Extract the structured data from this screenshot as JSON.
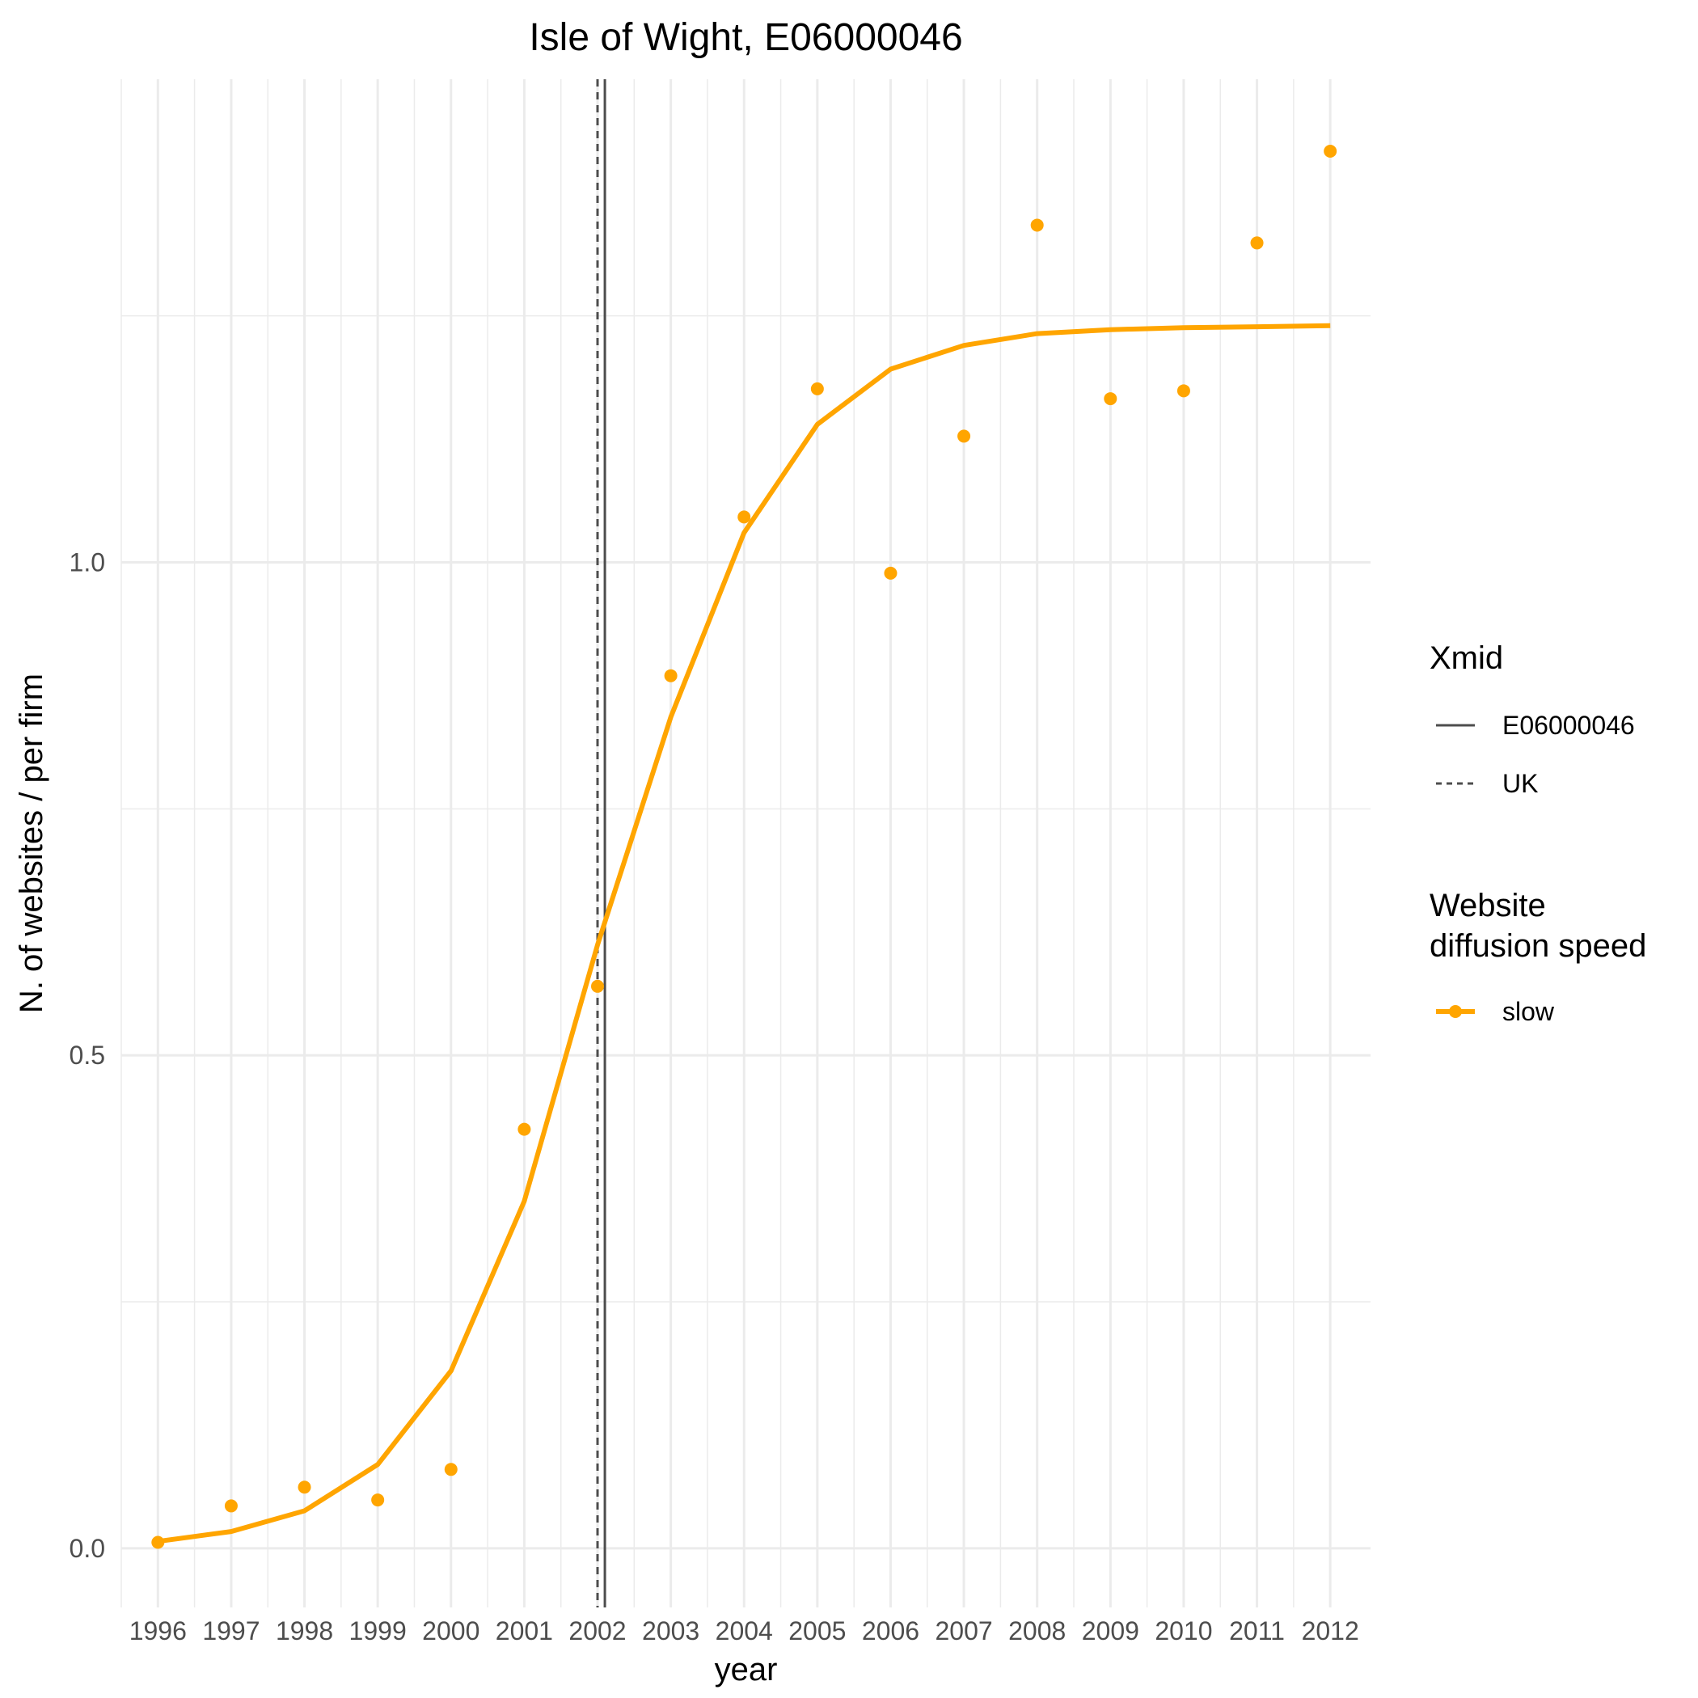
{
  "chart_data": {
    "type": "line",
    "title": "Isle of Wight, E06000046",
    "xlabel": "year",
    "ylabel": "N. of websites / per firm",
    "x": [
      1996,
      1997,
      1998,
      1999,
      2000,
      2001,
      2002,
      2003,
      2004,
      2005,
      2006,
      2007,
      2008,
      2009,
      2010,
      2011,
      2012
    ],
    "x_tick_labels": [
      "1996",
      "1997",
      "1998",
      "1999",
      "2000",
      "2001",
      "2002",
      "2003",
      "2004",
      "2005",
      "2006",
      "2007",
      "2008",
      "2009",
      "2010",
      "2011",
      "2012"
    ],
    "y_ticks": [
      0.0,
      0.5,
      1.0
    ],
    "y_tick_labels": [
      "0.0",
      "0.5",
      "1.0"
    ],
    "xlim": [
      1995.5,
      2012.55
    ],
    "ylim": [
      -0.06,
      1.49
    ],
    "grid": true,
    "legend_position": "right",
    "series": [
      {
        "name": "slow",
        "color": "#FFA500",
        "fitted": [
          0.007,
          0.017,
          0.038,
          0.085,
          0.18,
          0.352,
          0.612,
          0.843,
          1.03,
          1.14,
          1.196,
          1.22,
          1.232,
          1.236,
          1.238,
          1.239,
          1.24
        ],
        "observed": [
          0.006,
          0.043,
          0.062,
          0.049,
          0.08,
          0.425,
          0.57,
          0.885,
          1.046,
          1.176,
          0.989,
          1.128,
          1.342,
          1.166,
          1.174,
          1.324,
          1.417
        ]
      }
    ],
    "vlines": [
      {
        "name": "E06000046",
        "x": 2002.1,
        "linetype": "solid",
        "color": "#4d4d4d"
      },
      {
        "name": "UK",
        "x": 2002.0,
        "linetype": "dashed",
        "color": "#4d4d4d"
      }
    ],
    "legends": [
      {
        "title": "Xmid",
        "entries": [
          "E06000046",
          "UK"
        ]
      },
      {
        "title_lines": [
          "Website",
          "diffusion speed"
        ],
        "entries": [
          "slow"
        ]
      }
    ]
  }
}
